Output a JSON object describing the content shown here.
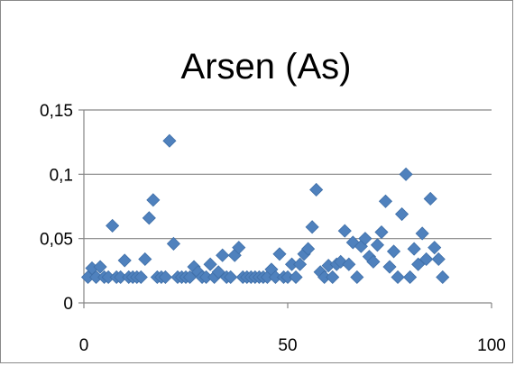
{
  "chart_data": {
    "type": "scatter",
    "title": "Arsen (As)",
    "xlabel": "",
    "ylabel": "",
    "xlim": [
      0,
      100
    ],
    "ylim": [
      0,
      0.15
    ],
    "xticks": [
      0,
      50,
      100
    ],
    "yticks": [
      0,
      0.05,
      0.1,
      0.15
    ],
    "xtick_labels": [
      "0",
      "50",
      "100"
    ],
    "ytick_labels": [
      "0",
      "0,05",
      "0,1",
      "0,15"
    ],
    "grid": "horizontal",
    "legend": "none",
    "marker_color": "#4f81bd",
    "marker": "diamond",
    "series": [
      {
        "x": [
          1,
          2,
          3,
          4,
          5,
          6,
          7,
          8,
          9,
          10,
          11,
          12,
          13,
          14,
          15,
          16,
          17,
          18,
          19,
          20,
          21,
          22,
          23,
          24,
          25,
          26,
          27,
          28,
          29,
          30,
          31,
          32,
          33,
          34,
          35,
          36,
          37,
          38,
          39,
          40,
          41,
          42,
          43,
          44,
          45,
          46,
          47,
          48,
          49,
          50,
          51,
          52,
          53,
          54,
          55,
          56,
          57,
          58,
          59,
          60,
          61,
          62,
          63,
          64,
          65,
          66,
          67,
          68,
          69,
          70,
          71,
          72,
          73,
          74,
          75,
          76,
          77,
          78,
          79,
          80,
          81,
          82,
          83,
          84,
          85,
          86,
          87,
          88
        ],
        "y": [
          0.02,
          0.027,
          0.02,
          0.028,
          0.02,
          0.02,
          0.06,
          0.02,
          0.02,
          0.033,
          0.02,
          0.02,
          0.02,
          0.02,
          0.034,
          0.066,
          0.08,
          0.02,
          0.02,
          0.02,
          0.126,
          0.046,
          0.02,
          0.02,
          0.02,
          0.02,
          0.028,
          0.024,
          0.02,
          0.02,
          0.03,
          0.02,
          0.024,
          0.037,
          0.02,
          0.02,
          0.037,
          0.043,
          0.02,
          0.02,
          0.02,
          0.02,
          0.02,
          0.02,
          0.02,
          0.026,
          0.02,
          0.038,
          0.02,
          0.02,
          0.03,
          0.02,
          0.03,
          0.038,
          0.042,
          0.059,
          0.088,
          0.024,
          0.02,
          0.029,
          0.02,
          0.03,
          0.032,
          0.056,
          0.03,
          0.047,
          0.02,
          0.044,
          0.05,
          0.036,
          0.032,
          0.045,
          0.055,
          0.079,
          0.028,
          0.04,
          0.02,
          0.069,
          0.1,
          0.02,
          0.042,
          0.03,
          0.054,
          0.034,
          0.081,
          0.043,
          0.034,
          0.02
        ]
      }
    ]
  }
}
